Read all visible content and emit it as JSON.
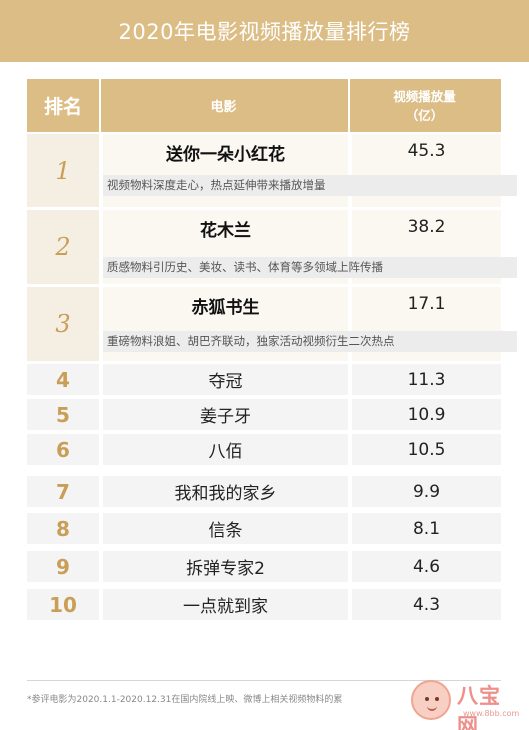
{
  "page": {
    "title": "2020年电影视频播放量排行榜"
  },
  "table": {
    "headers": {
      "rank": "排名",
      "movie": "电影",
      "views_line1": "视频播放量",
      "views_line2": "（亿）"
    }
  },
  "chart_data": {
    "type": "table",
    "title": "2020年电影视频播放量排行榜",
    "columns": [
      "排名",
      "电影",
      "视频播放量（亿）"
    ],
    "rows": [
      {
        "rank": "1",
        "movie": "送你一朵小红花",
        "views": "45.3",
        "note": "视频物料深度走心，热点延伸带来播放增量"
      },
      {
        "rank": "2",
        "movie": "花木兰",
        "views": "38.2",
        "note": "质感物料引历史、美妆、读书、体育等多领域上阵传播"
      },
      {
        "rank": "3",
        "movie": "赤狐书生",
        "views": "17.1",
        "note": "重磅物料浪姐、胡巴齐联动，独家活动视频衍生二次热点"
      },
      {
        "rank": "4",
        "movie": "夺冠",
        "views": "11.3"
      },
      {
        "rank": "5",
        "movie": "姜子牙",
        "views": "10.9"
      },
      {
        "rank": "6",
        "movie": "八佰",
        "views": "10.5"
      },
      {
        "rank": "7",
        "movie": "我和我的家乡",
        "views": "9.9"
      },
      {
        "rank": "8",
        "movie": "信条",
        "views": "8.1"
      },
      {
        "rank": "9",
        "movie": "拆弹专家2",
        "views": "4.6"
      },
      {
        "rank": "10",
        "movie": "一点就到家",
        "views": "4.3"
      }
    ]
  },
  "footnote": "*参评电影为2020.1.1-2020.12.31在国内院线上映、微博上相关视频物料的累",
  "watermark": {
    "text": "八宝网",
    "url": "www.8bb.com"
  },
  "colors": {
    "accent": "#dcbd86",
    "rank_text": "#c99e57"
  }
}
